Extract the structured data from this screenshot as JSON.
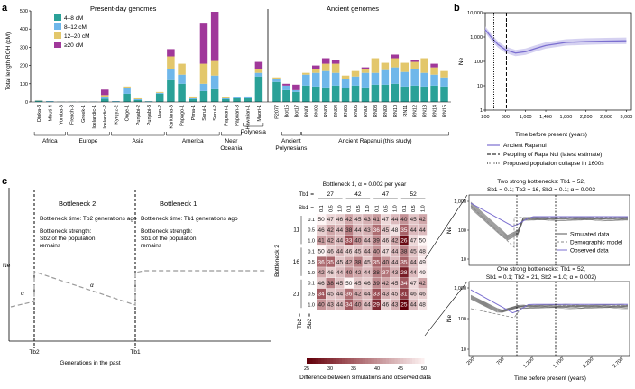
{
  "panel_labels": {
    "a": "a",
    "b": "b",
    "c": "c"
  },
  "colors": {
    "c1": "#2aa198",
    "c2": "#6fb7ea",
    "c3": "#e3c76b",
    "c4": "#a0389a",
    "line": "#7b6fd0",
    "band": "#cbc6ee"
  },
  "chart_data": [
    {
      "id": "a",
      "type": "bar",
      "stacked": true,
      "ylabel": "Total length ROH (cM)",
      "ylim": [
        0,
        500
      ],
      "yticks": [
        0,
        100,
        200,
        300,
        400,
        500
      ],
      "section_titles": {
        "present": "Present-day genomes",
        "ancient": "Ancient genomes"
      },
      "legend": [
        "4–8 cM",
        "8–12 cM",
        "12–20 cM",
        "≥20 cM"
      ],
      "categories": [
        "Dinka-3",
        "Mbuti-4",
        "Yoruba-3",
        "French-3",
        "Greek-1",
        "Icelandic-1",
        "Icelandic-2",
        "Kyrgyz-2",
        "Onge-1",
        "Punjabi-2",
        "Punjabi-3",
        "Han-2",
        "Karitiana-3",
        "Papago-1",
        "Pima-1",
        "Surui-1",
        "Surui-2",
        "Papuan-1",
        "Papuan-3",
        "Hawaiian-1",
        "Maori-1",
        "P2077",
        "Bot15",
        "Bot17",
        "RN01",
        "RN02",
        "RN03",
        "RN04",
        "RN05",
        "RN06",
        "RN07",
        "RN08",
        "RN09",
        "RN10",
        "RN11",
        "RN12",
        "RN13",
        "RN14",
        "RN15"
      ],
      "series": [
        {
          "name": "4–8 cM",
          "values": [
            5,
            3,
            1,
            1,
            1,
            1,
            18,
            3,
            45,
            10,
            3,
            45,
            120,
            100,
            15,
            60,
            70,
            15,
            20,
            20,
            140,
            110,
            65,
            55,
            90,
            85,
            80,
            90,
            75,
            90,
            80,
            95,
            95,
            100,
            85,
            90,
            85,
            90,
            85
          ]
        },
        {
          "name": "8–12 cM",
          "values": [
            3,
            2,
            0,
            0,
            0,
            1,
            8,
            2,
            30,
            5,
            1,
            5,
            60,
            50,
            5,
            40,
            75,
            5,
            5,
            10,
            20,
            15,
            25,
            10,
            60,
            75,
            90,
            70,
            50,
            50,
            80,
            65,
            80,
            90,
            80,
            90,
            75,
            60,
            50
          ]
        },
        {
          "name": "12–20 cM",
          "values": [
            2,
            0,
            0,
            0,
            0,
            0,
            12,
            0,
            10,
            5,
            0,
            5,
            70,
            60,
            10,
            110,
            80,
            5,
            0,
            0,
            20,
            10,
            0,
            0,
            10,
            20,
            40,
            50,
            20,
            30,
            20,
            80,
            40,
            50,
            50,
            40,
            80,
            40,
            35
          ]
        },
        {
          "name": "≥20 cM",
          "values": [
            0,
            0,
            0,
            0,
            0,
            0,
            30,
            0,
            0,
            0,
            0,
            0,
            40,
            0,
            0,
            220,
            270,
            0,
            0,
            0,
            40,
            0,
            10,
            30,
            0,
            20,
            30,
            20,
            0,
            0,
            10,
            0,
            0,
            20,
            0,
            10,
            0,
            20,
            0
          ]
        }
      ],
      "groups": [
        "Africa",
        "Europe",
        "Asia",
        "America",
        "Near Oceania",
        "Polynesia",
        "Ancient Polynesians",
        "Ancient Rapanui (this study)"
      ]
    },
    {
      "id": "b",
      "type": "line",
      "ylabel": "Ne",
      "xlabel": "Time before present (years)",
      "xticks": [
        200,
        600,
        1000,
        1400,
        1800,
        2200,
        2600,
        3000
      ],
      "ytick_labels": [
        "10,000",
        "1,000",
        "100",
        "10",
        "1"
      ],
      "ylim_log": [
        1,
        10000
      ],
      "xlim": [
        200,
        3100
      ],
      "series": [
        {
          "name": "Ancient Rapanui",
          "x": [
            200,
            300,
            450,
            600,
            800,
            1000,
            1200,
            1400,
            1800,
            2200,
            2600,
            3000
          ],
          "y": [
            2000,
            1100,
            500,
            300,
            220,
            250,
            340,
            450,
            600,
            650,
            680,
            700
          ]
        }
      ],
      "vlines": [
        {
          "x": 620,
          "name": "Peopling of Rapa Nui (latest estimate)"
        },
        {
          "x": 370,
          "name": "Proposed population collapse in 1600s"
        }
      ],
      "legend": [
        "Ancient Rapanui",
        "Peopling of Rapa Nui (latest estimate)",
        "Proposed population collapse in 1600s"
      ]
    },
    {
      "id": "c-heatmap",
      "type": "heatmap",
      "title": "Bottleneck 1, α = 0.002 per year",
      "tb1": [
        "27",
        "42",
        "47",
        "52"
      ],
      "sb1": [
        "0.1",
        "0.5",
        "1.0"
      ],
      "tb2": [
        "11",
        "16",
        "21"
      ],
      "sb2": [
        "0.1",
        "0.5",
        "1.0"
      ],
      "row_labels_title": "Bottleneck 2",
      "tb1_label": "Tb1 =",
      "sb1_label": "Sb1 =",
      "tb2_label": "Tb2 =",
      "sb2_label": "Sb2 =",
      "colorbar_label": "Difference between simulations and observed data",
      "colorbar_ticks": [
        "25",
        "30",
        "35",
        "40",
        "45",
        "50"
      ],
      "values": [
        [
          50,
          47,
          46,
          42,
          45,
          43,
          41,
          47,
          44,
          40,
          45,
          42
        ],
        [
          46,
          42,
          44,
          38,
          44,
          43,
          36,
          45,
          48,
          35,
          44,
          44
        ],
        [
          41,
          42,
          44,
          33,
          40,
          44,
          39,
          46,
          42,
          26,
          47,
          50
        ],
        [
          50,
          46,
          44,
          46,
          45,
          44,
          40,
          47,
          44,
          38,
          45,
          48
        ],
        [
          36,
          35,
          45,
          42,
          38,
          45,
          35,
          40,
          44,
          35,
          44,
          49
        ],
        [
          42,
          46,
          44,
          40,
          42,
          44,
          38,
          37,
          43,
          28,
          44,
          49
        ],
        [
          46,
          38,
          45,
          50,
          45,
          46,
          39,
          42,
          45,
          34,
          47,
          42
        ],
        [
          34,
          45,
          44,
          36,
          42,
          44,
          33,
          43,
          45,
          31,
          46,
          46
        ],
        [
          40,
          43,
          44,
          34,
          40,
          44,
          29,
          46,
          43,
          25,
          44,
          48
        ]
      ]
    }
  ],
  "diagram": {
    "bn2_title": "Bottleneck 2",
    "bn1_title": "Bottleneck 1",
    "bn2_time": "Bottleneck time: Tb2 generations ago",
    "bn2_strength": [
      "Bottleneck strength:",
      "Sb2 of the population",
      "remains"
    ],
    "bn1_time": "Bottleneck time: Tb1 generations ago",
    "bn1_strength": [
      "Bottleneck strength:",
      "Sb1 of the population",
      "remains"
    ],
    "ylabel": "Ne",
    "xlabel": "Generations in the past",
    "tb2": "Tb2",
    "tb1": "Tb1",
    "alpha": "α"
  },
  "right_panels": {
    "top_title": [
      "Two strong bottlenecks: Tb1 = 52,",
      "Sb1 = 0.1; Tb2 = 16, Sb2 = 0.1; α = 0.002"
    ],
    "bottom_title": [
      "One strong bottlenecks: Tb1 = 52,",
      "Sb1 = 0.1; Tb2 = 21, Sb2 = 1.0; α = 0.002)"
    ],
    "ylabel": "Ne",
    "xlabel": "Time before present (years)",
    "xticks": [
      "200",
      "700",
      "1,200",
      "1,700",
      "2,200",
      "2,700"
    ],
    "yticks": [
      "1,000",
      "100",
      "10"
    ],
    "yticks_bottom": [
      "1,000",
      "100",
      "10"
    ],
    "legend": [
      "Simulated data",
      "Demographic model",
      "Observed data"
    ]
  }
}
